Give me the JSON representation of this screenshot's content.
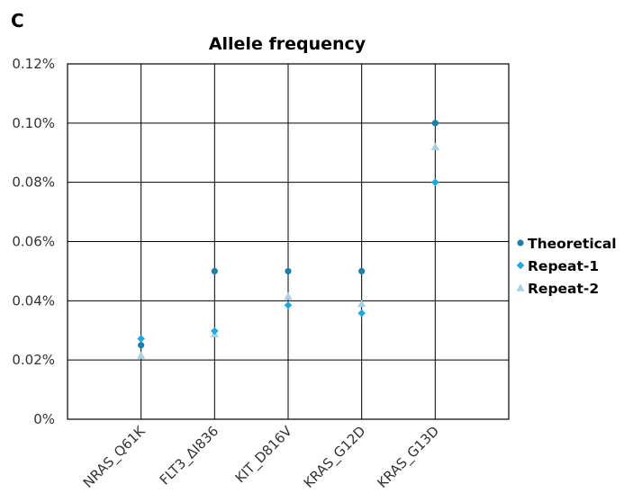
{
  "panel_label": "C",
  "chart_data": {
    "type": "scatter",
    "title": "Allele frequency",
    "xlabel": "",
    "ylabel": "",
    "categories": [
      "NRAS_Q61K",
      "FLT3_ΔI836",
      "KIT_D816V",
      "KRAS_G12D",
      "KRAS_G13D"
    ],
    "ylim": [
      0,
      0.12
    ],
    "yticks": [
      0,
      0.02,
      0.04,
      0.06,
      0.08,
      0.1,
      0.12
    ],
    "ytick_labels": [
      "0%",
      "0.02%",
      "0.04%",
      "0.06%",
      "0.08%",
      "0.10%",
      "0.12%"
    ],
    "grid": true,
    "legend_position": "right",
    "series": [
      {
        "name": "Theoretical",
        "marker": "circle",
        "color": "#1b7fa8",
        "values": [
          0.025,
          0.05,
          0.05,
          0.05,
          0.1
        ]
      },
      {
        "name": "Repeat-1",
        "marker": "diamond",
        "color": "#1fa9de",
        "values": [
          0.0272,
          0.0298,
          0.0385,
          0.0358,
          0.08
        ]
      },
      {
        "name": "Repeat-2",
        "marker": "triangle",
        "color": "#a9cfe3",
        "values": [
          0.0215,
          0.0288,
          0.0415,
          0.039,
          0.092
        ]
      }
    ]
  }
}
